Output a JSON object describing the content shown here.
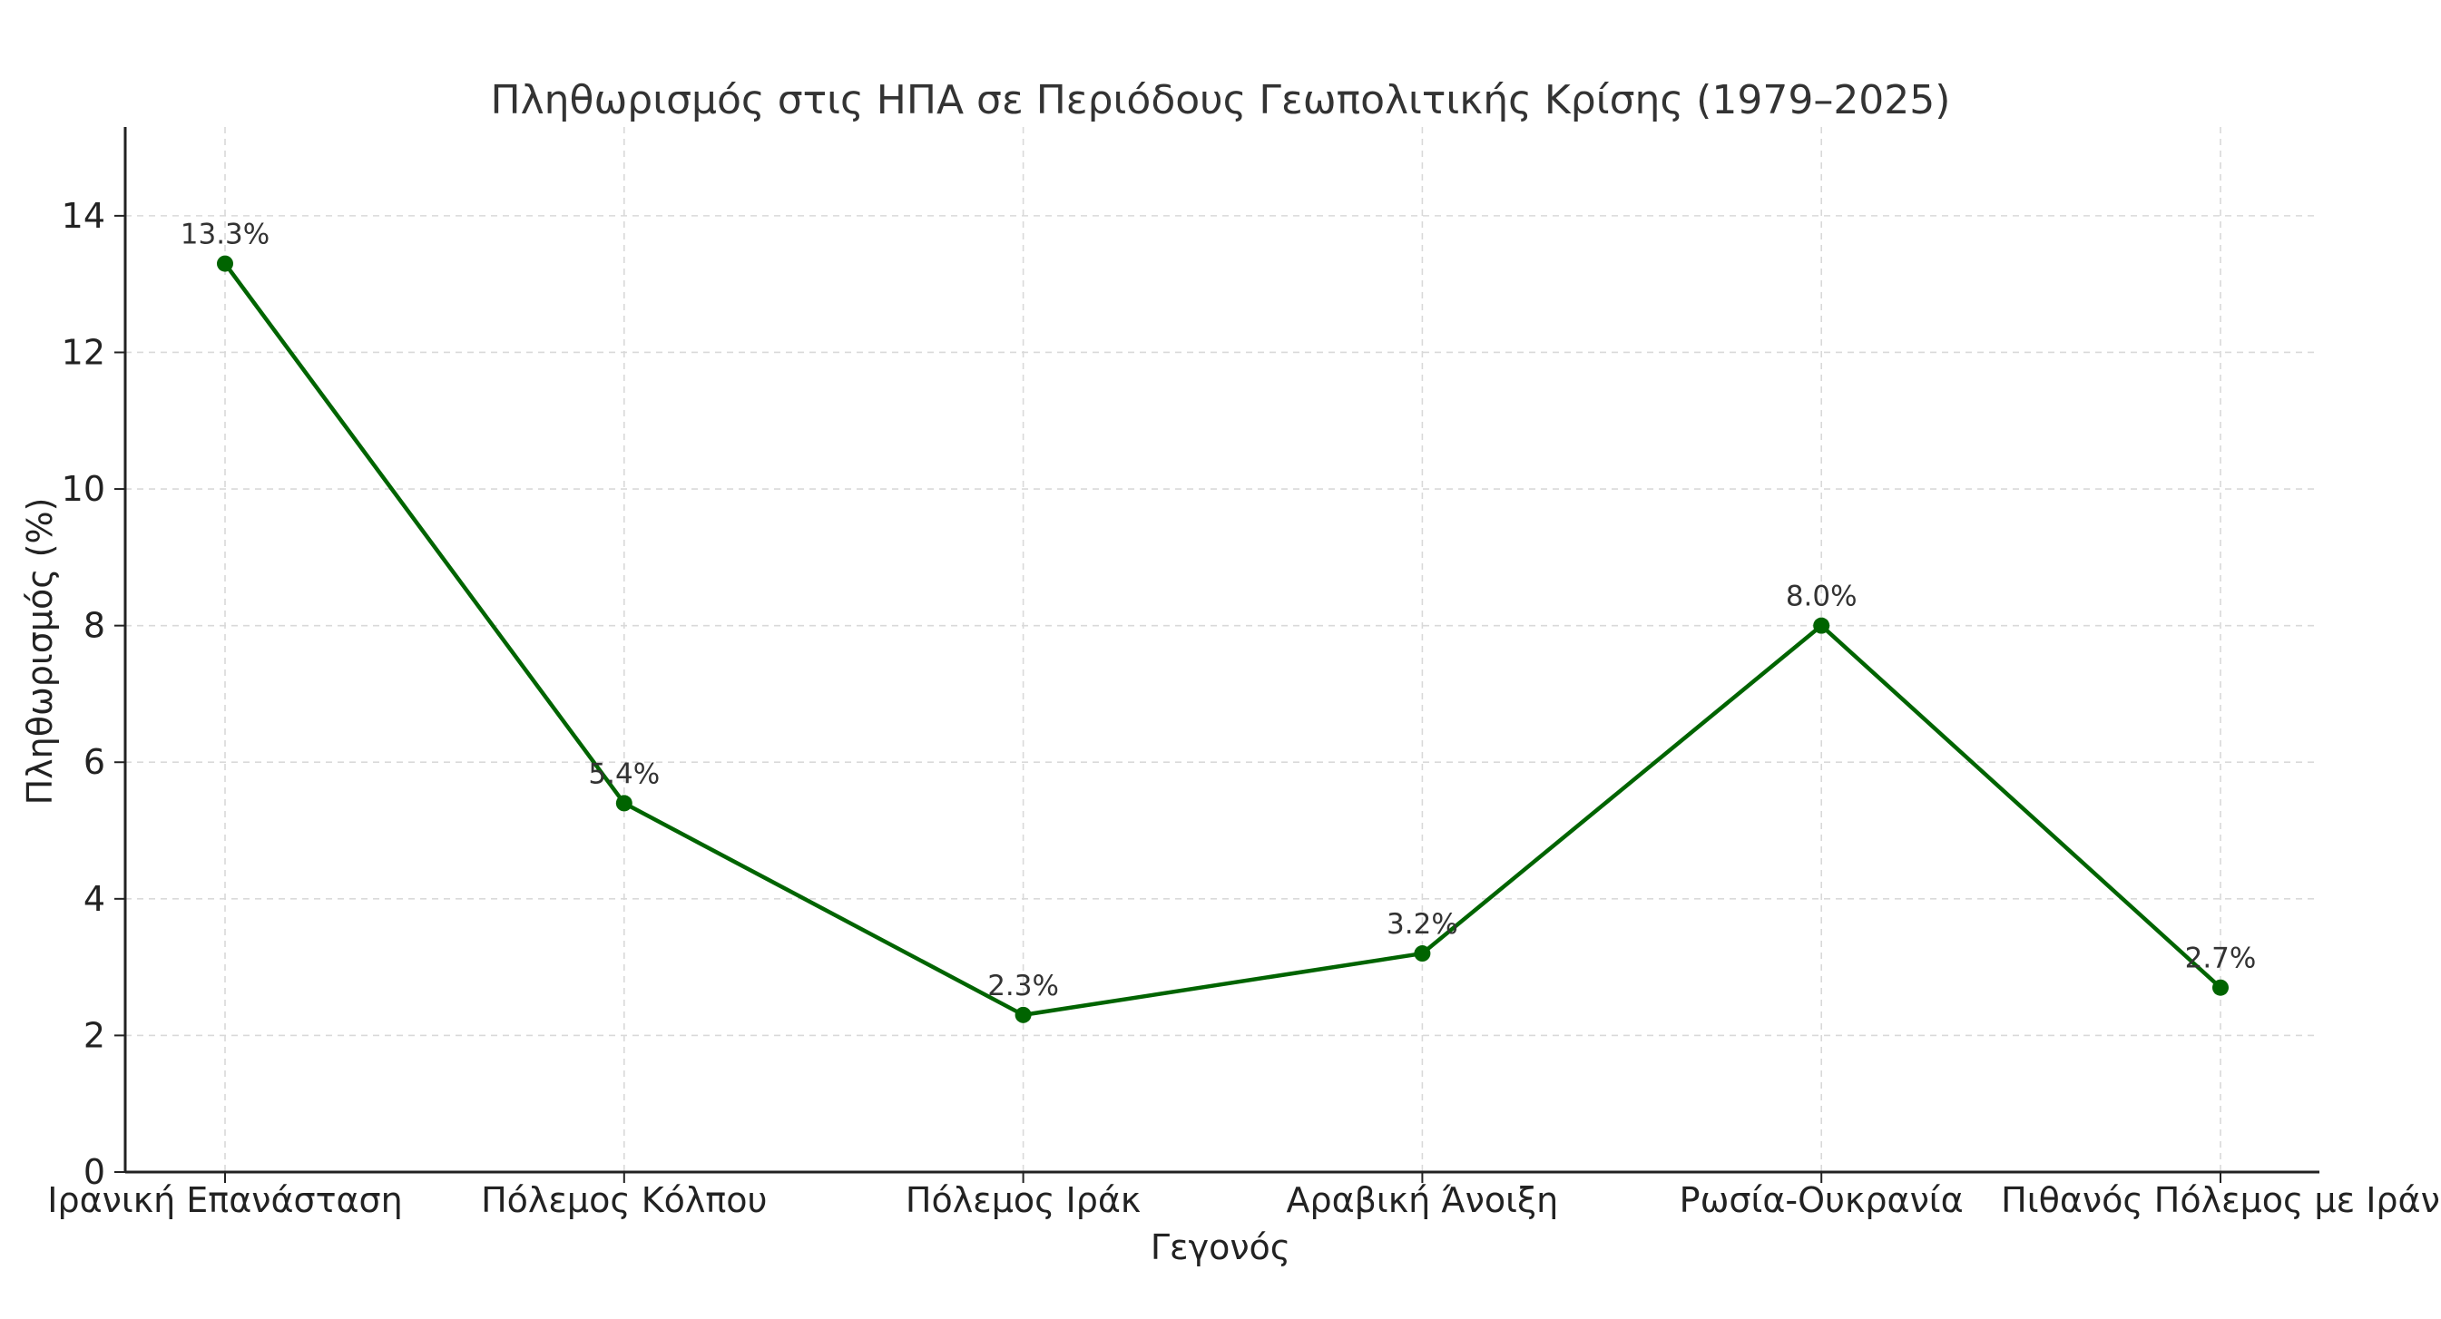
{
  "chart_data": {
    "type": "line",
    "title": "Πληθωρισμός στις ΗΠΑ σε Περιόδους Γεωπολιτικής Κρίσης (1979–2025)",
    "xlabel": "Γεγονός",
    "ylabel": "Πληθωρισμός (%)",
    "categories": [
      "Ιρανική Επανάσταση",
      "Πόλεμος Κόλπου",
      "Πόλεμος Ιράκ",
      "Αραβική Άνοιξη",
      "Ρωσία-Ουκρανία",
      "Πιθανός Πόλεμος με Ιράν"
    ],
    "series": [
      {
        "values": [
          13.3,
          5.4,
          2.3,
          3.2,
          8.0,
          2.7
        ],
        "data_labels": [
          "13.3%",
          "5.4%",
          "2.3%",
          "3.2%",
          "8.0%",
          "2.7%"
        ]
      }
    ],
    "ylim": [
      0,
      15.3
    ],
    "yticks": [
      0,
      2,
      4,
      6,
      8,
      10,
      12,
      14
    ],
    "grid": true,
    "marker": "circle",
    "colors": {
      "series": "#006400",
      "grid": "#d9d9d9",
      "axis": "#222222"
    }
  }
}
